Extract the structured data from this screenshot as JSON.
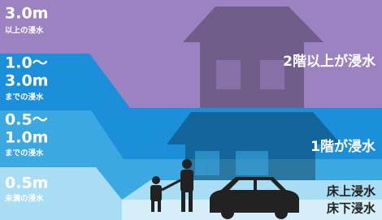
{
  "levels": [
    {
      "depth": [
        "3.0m"
      ],
      "note": "以上の浸水",
      "description": "2階以上が浸水"
    },
    {
      "depth": [
        "1.0〜",
        "3.0m"
      ],
      "note": "までの浸水",
      "description": "1階が浸水"
    },
    {
      "depth": [
        "0.5〜",
        "1.0m"
      ],
      "note": "までの浸水",
      "description": "床上浸水"
    },
    {
      "depth": [
        "0.5m"
      ],
      "note": "未満の浸水",
      "description": "床下浸水"
    }
  ]
}
